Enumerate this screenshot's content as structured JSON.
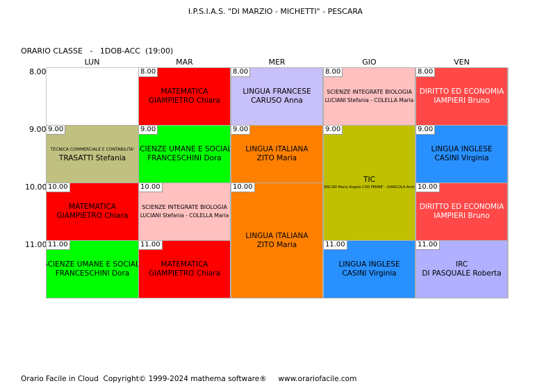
{
  "header": {
    "school": "I.P.S.I.A.S. \"DI MARZIO - MICHETTI\" - PESCARA",
    "class_line": "ORARIO CLASSE   -   1DOB-ACC  (19:00)"
  },
  "days": [
    "LUN",
    "MAR",
    "MER",
    "GIO",
    "VEN"
  ],
  "times": [
    "8.00",
    "9.00",
    "10.00",
    "11.00"
  ],
  "cells": {
    "mar_8": {
      "time": "8.00",
      "subject": "MATEMATICA",
      "teacher": "GIAMPIETRO Chiara",
      "color": "#ff0000"
    },
    "mer_8": {
      "time": "8.00",
      "subject": "LINGUA FRANCESE",
      "teacher": "CARUSO Anna",
      "color": "#c8c0f8"
    },
    "gio_8": {
      "time": "8.00",
      "subject": "SCIENZE INTEGRATE  BIOLOGIA",
      "teacher": "LUCIANI Stefania - COLELLA Maria",
      "color": "#ffc0c0"
    },
    "ven_8": {
      "time": "8.00",
      "subject": "DIRITTO ED ECONOMIA",
      "teacher": "IAMPIERI Bruno",
      "color": "#ff4848"
    },
    "lun_9": {
      "time": "9.00",
      "subject": "TECNICA COMMERCIALE E CONTABILITA'",
      "teacher": "TRASATTI Stefania",
      "color": "#c0c080"
    },
    "mar_9": {
      "time": "9.00",
      "subject": "SCIENZE UMANE E SOCIALI",
      "teacher": "FRANCESCHINI Dora",
      "color": "#00ff00"
    },
    "mer_9": {
      "time": "9.00",
      "subject": "LINGUA ITALIANA",
      "teacher": "ZITO Maria",
      "color": "#ff8000"
    },
    "gio_9": {
      "time": "9.00",
      "subject": "TIC",
      "teacher": "MERCURI Maria Angela COD PENNE' - GIANCOLA Amina",
      "color": "#c0c000"
    },
    "ven_9": {
      "time": "9.00",
      "subject": "LINGUA INGLESE",
      "teacher": "CASINI Virginia",
      "color": "#2890ff"
    },
    "lun_10": {
      "time": "10.00",
      "subject": "MATEMATICA",
      "teacher": "GIAMPIETRO Chiara",
      "color": "#ff0000"
    },
    "mar_10": {
      "time": "10.00",
      "subject": "SCIENZE INTEGRATE  BIOLOGIA",
      "teacher": "LUCIANI Stefania - COLELLA Maria",
      "color": "#ffc0c0"
    },
    "mer_10": {
      "time": "10.00",
      "subject": "LINGUA ITALIANA",
      "teacher": "ZITO Maria",
      "color": "#ff8000"
    },
    "ven_10": {
      "time": "10.00",
      "subject": "DIRITTO ED ECONOMIA",
      "teacher": "IAMPIERI Bruno",
      "color": "#ff4848"
    },
    "lun_11": {
      "time": "11.00",
      "subject": "SCIENZE UMANE E SOCIALI",
      "teacher": "FRANCESCHINI Dora",
      "color": "#00ff00"
    },
    "mar_11": {
      "time": "11.00",
      "subject": "MATEMATICA",
      "teacher": "GIAMPIETRO Chiara",
      "color": "#ff0000"
    },
    "gio_11": {
      "time": "11.00",
      "subject": "LINGUA INGLESE",
      "teacher": "CASINI Virginia",
      "color": "#2890ff"
    },
    "ven_11": {
      "time": "11.00",
      "subject": "IRC",
      "teacher": "DI PASQUALE Roberta",
      "color": "#b0b0ff"
    }
  },
  "footer": "Orario Facile in Cloud  Copyright© 1999-2024 mathema software®     www.orariofacile.com"
}
